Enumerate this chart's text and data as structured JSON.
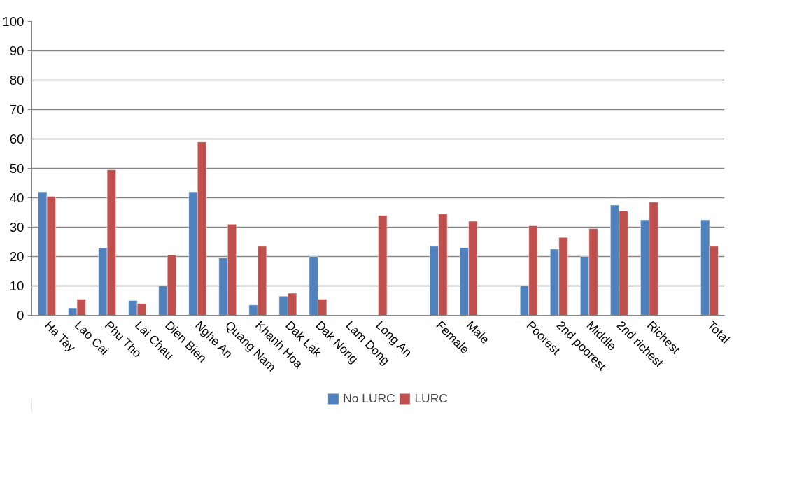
{
  "chart_data": {
    "type": "bar",
    "categories": [
      "Ha Tay",
      "Lao Cai",
      "Phu Tho",
      "Lai Chau",
      "Dien Bien",
      "Nghe An",
      "Quang Nam",
      "Khanh Hoa",
      "Dak Lak",
      "Dak Nong",
      "Lam Dong",
      "Long An",
      null,
      "Female",
      "Male",
      null,
      "Poorest",
      "2nd poorest",
      "Middle",
      "2nd richest",
      "Richest",
      null,
      "Total"
    ],
    "series": [
      {
        "name": "No LURC",
        "color": "#4f81bd",
        "values": [
          42,
          2.5,
          23,
          5,
          10,
          42,
          19.5,
          3.5,
          6.5,
          20,
          null,
          null,
          null,
          23.5,
          23,
          null,
          10,
          22.5,
          20,
          37.5,
          32.5,
          null,
          32.5
        ]
      },
      {
        "name": "LURC",
        "color": "#c0504d",
        "values": [
          40.5,
          5.5,
          49.5,
          4,
          20.5,
          59,
          31,
          23.5,
          7.5,
          5.5,
          null,
          34,
          null,
          34.5,
          32,
          null,
          30.5,
          26.5,
          29.5,
          35.5,
          38.5,
          null,
          23.5
        ]
      }
    ],
    "ylim": [
      0,
      100
    ],
    "yticks": [
      0,
      10,
      20,
      30,
      40,
      50,
      60,
      70,
      80,
      90,
      100
    ],
    "grid": "y",
    "legend": "bottom"
  }
}
